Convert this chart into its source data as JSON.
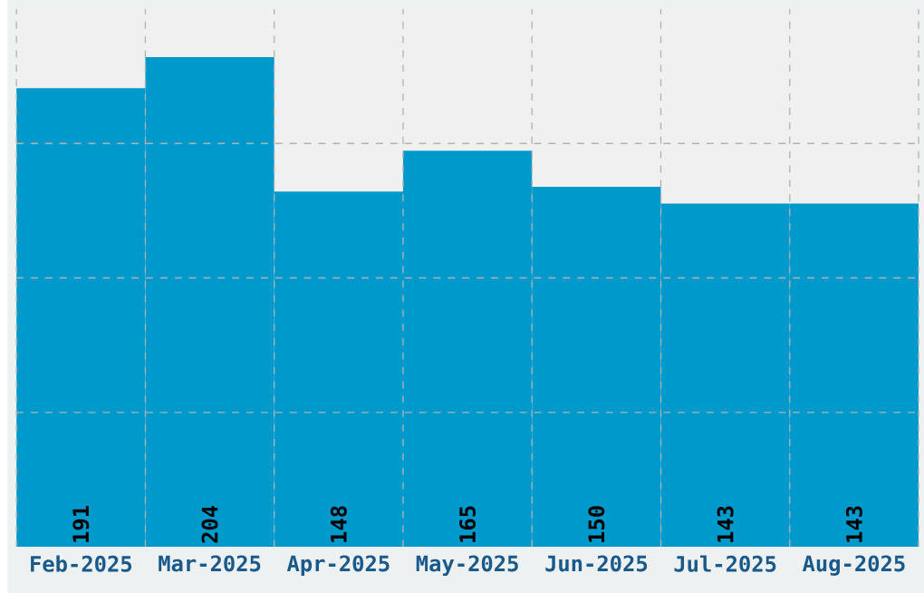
{
  "chart_data": {
    "type": "bar",
    "categories": [
      "Feb-2025",
      "Mar-2025",
      "Apr-2025",
      "May-2025",
      "Jun-2025",
      "Jul-2025",
      "Aug-2025"
    ],
    "values": [
      191,
      204,
      148,
      165,
      150,
      143,
      143
    ],
    "color": "#0099cc",
    "data_labels": true,
    "ylim": [
      0,
      224
    ],
    "yticks": [
      {
        "value": 56,
        "label": null
      },
      {
        "value": 112,
        "label": null
      },
      {
        "value": 168,
        "label": null
      }
    ],
    "tick_labels": "x",
    "grid": true
  }
}
